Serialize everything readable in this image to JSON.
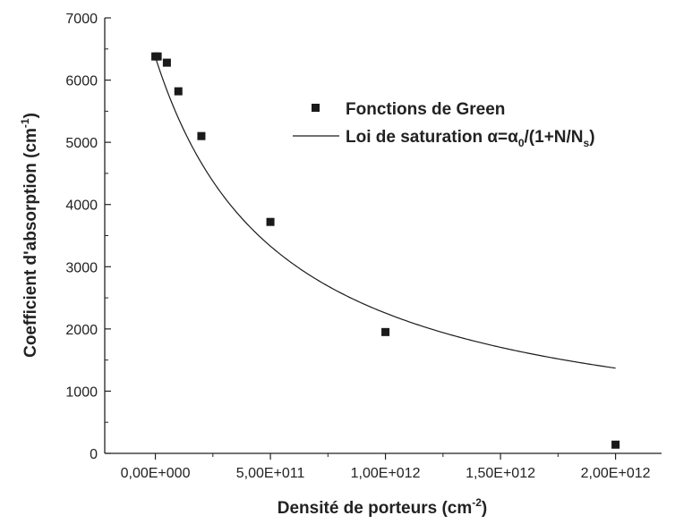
{
  "chart_data": {
    "type": "scatter",
    "xlabel": {
      "main": "Densité de porteurs (cm",
      "sup": "-2",
      "close": ")"
    },
    "ylabel": {
      "main": "Coefficient d'absorption (cm",
      "sup": "-1",
      "close": ")"
    },
    "xlim": [
      -220000000000.0,
      2200000000000.0
    ],
    "ylim": [
      0,
      7000
    ],
    "x_ticks": [
      0,
      500000000000.0,
      1000000000000.0,
      1500000000000.0,
      2000000000000.0
    ],
    "x_tick_labels": [
      "0,00E+000",
      "5,00E+011",
      "1,00E+012",
      "1,50E+012",
      "2,00E+012"
    ],
    "y_ticks": [
      0,
      1000,
      2000,
      3000,
      4000,
      5000,
      6000,
      7000
    ],
    "y_tick_labels": [
      "0",
      "1000",
      "2000",
      "3000",
      "4000",
      "5000",
      "6000",
      "7000"
    ],
    "series": [
      {
        "name": "Fonctions de Green",
        "kind": "scatter",
        "marker": "square",
        "color": "#1a1a1a",
        "points": [
          {
            "x": 0,
            "y": 6380
          },
          {
            "x": 10000000000.0,
            "y": 6380
          },
          {
            "x": 50000000000.0,
            "y": 6280
          },
          {
            "x": 100000000000.0,
            "y": 5820
          },
          {
            "x": 200000000000.0,
            "y": 5100
          },
          {
            "x": 500000000000.0,
            "y": 3720
          },
          {
            "x": 1000000000000.0,
            "y": 1950
          },
          {
            "x": 2000000000000.0,
            "y": 140
          }
        ]
      },
      {
        "name": "Loi de saturation",
        "kind": "line",
        "color": "#1a1a1a",
        "model": {
          "alpha0": 6370,
          "Ns": 548000000000.0,
          "x_range": [
            0,
            2000000000000.0
          ]
        }
      }
    ],
    "legend": {
      "position": "top-right",
      "entries": [
        {
          "text": "Fonctions de Green"
        },
        {
          "text_parts": [
            "Loi de saturation ",
            "α",
            "=",
            "α",
            "0",
            "/(1+N/N",
            "s",
            ")"
          ]
        }
      ]
    },
    "grid": false
  }
}
